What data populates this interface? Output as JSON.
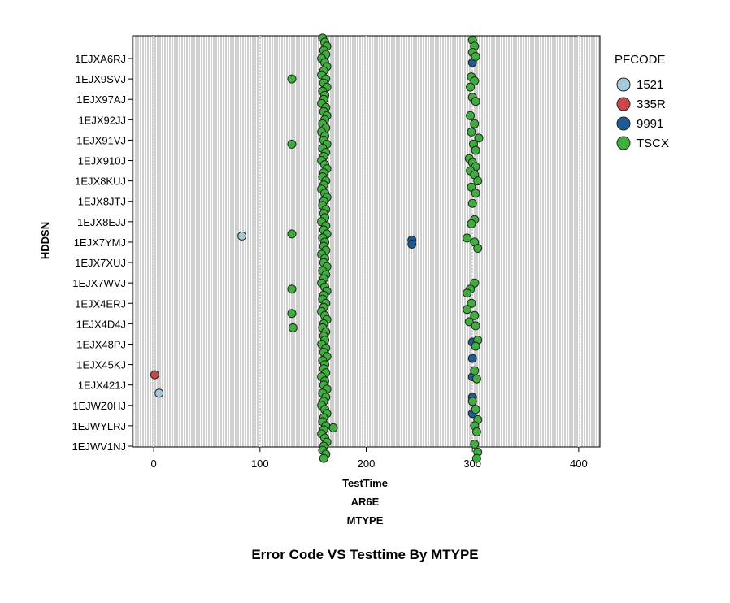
{
  "chart_data": {
    "type": "scatter",
    "title": "Error Code VS Testtime By MTYPE",
    "xlabel": "TestTime",
    "facet_labels": [
      "AR6E",
      "MTYPE"
    ],
    "ylabel": "HDDSN",
    "xlim": [
      -20,
      420
    ],
    "xticks": [
      0,
      100,
      200,
      300,
      400
    ],
    "grid": "vertical dotted",
    "legend": {
      "title": "PFCODE",
      "position": "right",
      "entries": [
        {
          "name": "1521",
          "color": "#a6c8dc"
        },
        {
          "name": "335R",
          "color": "#c9464a"
        },
        {
          "name": "9991",
          "color": "#1f5a96"
        },
        {
          "name": "TSCX",
          "color": "#3fae3f"
        }
      ]
    },
    "categories": [
      "1EJXA6RJ",
      "1EJX9SVJ",
      "1EJX97AJ",
      "1EJX92JJ",
      "1EJX91VJ",
      "1EJX910J",
      "1EJX8KUJ",
      "1EJX8JTJ",
      "1EJX8EJJ",
      "1EJX7YMJ",
      "1EJX7XUJ",
      "1EJX7WVJ",
      "1EJX4ERJ",
      "1EJX4D4J",
      "1EJX48PJ",
      "1EJX45KJ",
      "1EJX421J",
      "1EJWZ0HJ",
      "1EJWYLRJ",
      "1EJWV1NJ"
    ],
    "series": [
      {
        "name": "1521",
        "points": [
          [
            83,
            8.7
          ],
          [
            5,
            16.4
          ]
        ]
      },
      {
        "name": "335R",
        "points": [
          [
            1,
            15.5
          ]
        ]
      },
      {
        "name": "9991",
        "points": [
          [
            300,
            0.2
          ],
          [
            243,
            8.9
          ],
          [
            243,
            9.1
          ],
          [
            300,
            13.9
          ],
          [
            300,
            14.7
          ],
          [
            300,
            15.6
          ],
          [
            300,
            16.6
          ],
          [
            300,
            17.4
          ]
        ]
      },
      {
        "name": "TSCX",
        "points": [
          [
            159,
            -1
          ],
          [
            161,
            -0.8
          ],
          [
            163,
            -0.6
          ],
          [
            160,
            -0.4
          ],
          [
            162,
            -0.2
          ],
          [
            158,
            0
          ],
          [
            161,
            0.2
          ],
          [
            163,
            0.4
          ],
          [
            160,
            0.6
          ],
          [
            158,
            0.8
          ],
          [
            162,
            1.0
          ],
          [
            160,
            1.2
          ],
          [
            163,
            1.4
          ],
          [
            159,
            1.6
          ],
          [
            161,
            1.8
          ],
          [
            160,
            2.0
          ],
          [
            158,
            2.2
          ],
          [
            162,
            2.4
          ],
          [
            160,
            2.6
          ],
          [
            163,
            2.8
          ],
          [
            161,
            3.0
          ],
          [
            159,
            3.2
          ],
          [
            162,
            3.4
          ],
          [
            158,
            3.6
          ],
          [
            161,
            3.8
          ],
          [
            160,
            4.0
          ],
          [
            163,
            4.2
          ],
          [
            159,
            4.4
          ],
          [
            162,
            4.6
          ],
          [
            160,
            4.8
          ],
          [
            158,
            5.0
          ],
          [
            161,
            5.2
          ],
          [
            163,
            5.4
          ],
          [
            160,
            5.6
          ],
          [
            159,
            5.8
          ],
          [
            162,
            6.0
          ],
          [
            160,
            6.2
          ],
          [
            158,
            6.4
          ],
          [
            161,
            6.6
          ],
          [
            163,
            6.8
          ],
          [
            160,
            7.0
          ],
          [
            159,
            7.2
          ],
          [
            162,
            7.4
          ],
          [
            160,
            7.6
          ],
          [
            161,
            7.8
          ],
          [
            158,
            8.0
          ],
          [
            162,
            8.2
          ],
          [
            160,
            8.4
          ],
          [
            163,
            8.6
          ],
          [
            159,
            8.8
          ],
          [
            161,
            9.0
          ],
          [
            160,
            9.2
          ],
          [
            162,
            9.4
          ],
          [
            158,
            9.6
          ],
          [
            161,
            9.8
          ],
          [
            160,
            10.0
          ],
          [
            163,
            10.2
          ],
          [
            159,
            10.4
          ],
          [
            162,
            10.6
          ],
          [
            160,
            10.8
          ],
          [
            158,
            11.0
          ],
          [
            161,
            11.2
          ],
          [
            163,
            11.4
          ],
          [
            160,
            11.6
          ],
          [
            159,
            11.8
          ],
          [
            162,
            12.0
          ],
          [
            160,
            12.2
          ],
          [
            158,
            12.4
          ],
          [
            161,
            12.6
          ],
          [
            163,
            12.8
          ],
          [
            160,
            13.0
          ],
          [
            159,
            13.2
          ],
          [
            162,
            13.4
          ],
          [
            160,
            13.6
          ],
          [
            161,
            13.8
          ],
          [
            158,
            14.0
          ],
          [
            162,
            14.2
          ],
          [
            160,
            14.4
          ],
          [
            163,
            14.6
          ],
          [
            159,
            14.8
          ],
          [
            161,
            15.0
          ],
          [
            160,
            15.2
          ],
          [
            162,
            15.4
          ],
          [
            158,
            15.6
          ],
          [
            161,
            15.8
          ],
          [
            160,
            16.0
          ],
          [
            163,
            16.2
          ],
          [
            159,
            16.4
          ],
          [
            162,
            16.6
          ],
          [
            160,
            16.8
          ],
          [
            158,
            17.0
          ],
          [
            161,
            17.2
          ],
          [
            163,
            17.4
          ],
          [
            160,
            17.6
          ],
          [
            159,
            17.8
          ],
          [
            162,
            18.0
          ],
          [
            169,
            18.1
          ],
          [
            160,
            18.2
          ],
          [
            158,
            18.4
          ],
          [
            161,
            18.6
          ],
          [
            163,
            18.8
          ],
          [
            160,
            19.0
          ],
          [
            159,
            19.2
          ],
          [
            162,
            19.4
          ],
          [
            160,
            19.6
          ],
          [
            130,
            1.0
          ],
          [
            130,
            4.2
          ],
          [
            130,
            8.6
          ],
          [
            130,
            11.3
          ],
          [
            130,
            12.5
          ],
          [
            131,
            13.2
          ],
          [
            300,
            -0.9
          ],
          [
            302,
            -0.6
          ],
          [
            300,
            -0.3
          ],
          [
            303,
            -0.1
          ],
          [
            299,
            0.9
          ],
          [
            302,
            1.1
          ],
          [
            298,
            1.4
          ],
          [
            300,
            1.9
          ],
          [
            303,
            2.1
          ],
          [
            298,
            2.8
          ],
          [
            302,
            3.2
          ],
          [
            299,
            3.6
          ],
          [
            306,
            3.9
          ],
          [
            301,
            4.2
          ],
          [
            303,
            4.5
          ],
          [
            297,
            4.9
          ],
          [
            300,
            5.1
          ],
          [
            303,
            5.3
          ],
          [
            298,
            5.5
          ],
          [
            302,
            5.7
          ],
          [
            305,
            6.0
          ],
          [
            299,
            6.3
          ],
          [
            303,
            6.6
          ],
          [
            300,
            7.1
          ],
          [
            302,
            7.9
          ],
          [
            299,
            8.1
          ],
          [
            295,
            8.8
          ],
          [
            302,
            9.0
          ],
          [
            305,
            9.3
          ],
          [
            302,
            11.0
          ],
          [
            298,
            11.3
          ],
          [
            295,
            11.5
          ],
          [
            299,
            12.0
          ],
          [
            295,
            12.3
          ],
          [
            302,
            12.6
          ],
          [
            297,
            12.9
          ],
          [
            303,
            13.1
          ],
          [
            305,
            13.8
          ],
          [
            303,
            14.1
          ],
          [
            302,
            15.3
          ],
          [
            304,
            15.7
          ],
          [
            300,
            16.8
          ],
          [
            303,
            17.2
          ],
          [
            305,
            17.7
          ],
          [
            302,
            18.0
          ],
          [
            304,
            18.3
          ],
          [
            302,
            18.9
          ],
          [
            305,
            19.3
          ],
          [
            304,
            19.6
          ]
        ]
      }
    ]
  }
}
